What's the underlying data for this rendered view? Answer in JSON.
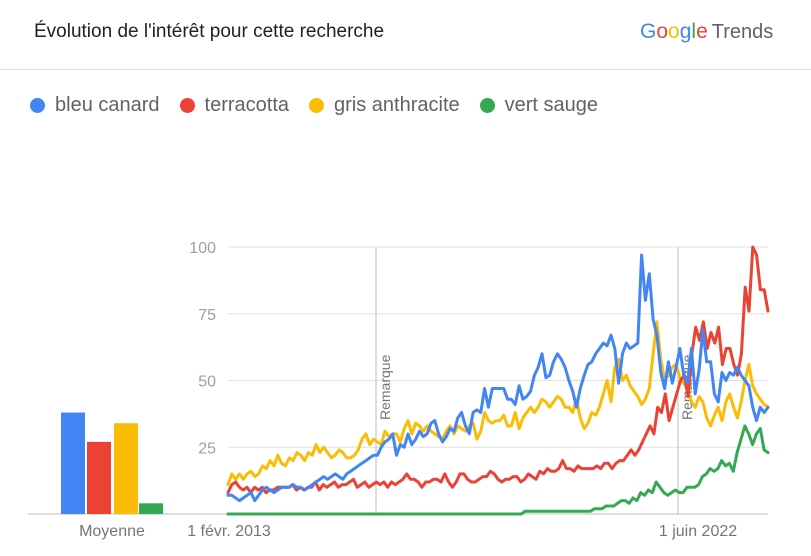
{
  "header": {
    "title": "Évolution de l'intérêt pour cette recherche",
    "brand_google": [
      "G",
      "o",
      "o",
      "g",
      "l",
      "e"
    ],
    "brand_colors": [
      "#4285f4",
      "#ea4335",
      "#fbbc05",
      "#4285f4",
      "#34a853",
      "#ea4335"
    ],
    "brand_trends": "Trends"
  },
  "chart_data": {
    "type": "line",
    "x_tick_labels": [
      "1 févr. 2013",
      "1 juin 2022"
    ],
    "y_ticks": [
      25,
      50,
      75,
      100
    ],
    "ylim": [
      0,
      100
    ],
    "annotations": [
      "Remarque",
      "Remarque"
    ],
    "average_label": "Moyenne",
    "series": [
      {
        "name": "bleu canard",
        "color": "#4285f4",
        "average": 38,
        "values": [
          7,
          7,
          6,
          5,
          6,
          7,
          8,
          5,
          7,
          9,
          10,
          9,
          8,
          9,
          10,
          10,
          10,
          11,
          10,
          10,
          9,
          10,
          11,
          12,
          13,
          14,
          13,
          14,
          15,
          14,
          13,
          15,
          16,
          17,
          18,
          19,
          20,
          21,
          22,
          22,
          25,
          27,
          28,
          30,
          22,
          26,
          25,
          30,
          26,
          28,
          31,
          29,
          30,
          34,
          35,
          30,
          27,
          29,
          32,
          31,
          36,
          38,
          33,
          30,
          38,
          39,
          38,
          47,
          40,
          47,
          47,
          47,
          47,
          43,
          43,
          41,
          48,
          43,
          44,
          46,
          52,
          55,
          60,
          51,
          52,
          57,
          60,
          58,
          55,
          50,
          46,
          40,
          47,
          52,
          56,
          57,
          60,
          62,
          64,
          63,
          67,
          62,
          49,
          60,
          64,
          62,
          63,
          64,
          97,
          80,
          90,
          73,
          67,
          53,
          47,
          57,
          49,
          55,
          62,
          52,
          49,
          62,
          45,
          54,
          69,
          57,
          57,
          45,
          42,
          53,
          50,
          53,
          52,
          55,
          52,
          50,
          48,
          40,
          35,
          40,
          38,
          40
        ]
      },
      {
        "name": "terracotta",
        "color": "#ea4335",
        "average": 27,
        "values": [
          8,
          11,
          12,
          10,
          9,
          10,
          8,
          10,
          9,
          10,
          8,
          9,
          9,
          10,
          10,
          10,
          10,
          11,
          9,
          10,
          9,
          10,
          10,
          12,
          9,
          11,
          10,
          11,
          12,
          10,
          11,
          11,
          12,
          13,
          10,
          11,
          12,
          10,
          11,
          12,
          11,
          12,
          10,
          12,
          11,
          12,
          13,
          15,
          13,
          13,
          12,
          10,
          12,
          12,
          13,
          13,
          12,
          15,
          12,
          10,
          12,
          15,
          15,
          13,
          12,
          12,
          13,
          14,
          14,
          16,
          15,
          13,
          12,
          13,
          13,
          14,
          14,
          12,
          13,
          15,
          14,
          13,
          16,
          15,
          17,
          16,
          16,
          17,
          20,
          17,
          17,
          16,
          18,
          17,
          17,
          17,
          17,
          18,
          17,
          19,
          19,
          17,
          19,
          20,
          20,
          22,
          24,
          22,
          24,
          27,
          30,
          33,
          30,
          40,
          38,
          45,
          35,
          40,
          45,
          50,
          52,
          44,
          60,
          70,
          65,
          72,
          62,
          68,
          64,
          70,
          56,
          62,
          62,
          56,
          52,
          60,
          85,
          76,
          100,
          97,
          84,
          84,
          76
        ]
      },
      {
        "name": "gris anthracite",
        "color": "#fbbc05",
        "average": 34,
        "values": [
          11,
          15,
          13,
          15,
          13,
          15,
          16,
          14,
          15,
          18,
          17,
          20,
          18,
          22,
          19,
          18,
          21,
          20,
          23,
          22,
          20,
          23,
          22,
          26,
          23,
          25,
          23,
          21,
          22,
          24,
          23,
          21,
          21,
          22,
          24,
          28,
          30,
          26,
          28,
          27,
          26,
          31,
          29,
          30,
          30,
          27,
          32,
          35,
          30,
          34,
          33,
          31,
          33,
          31,
          30,
          29,
          28,
          31,
          33,
          30,
          33,
          32,
          31,
          33,
          34,
          28,
          31,
          38,
          35,
          34,
          35,
          35,
          37,
          33,
          33,
          38,
          32,
          36,
          38,
          40,
          38,
          40,
          43,
          42,
          40,
          42,
          44,
          43,
          40,
          40,
          38,
          43,
          36,
          32,
          34,
          38,
          37,
          40,
          45,
          50,
          42,
          55,
          58,
          50,
          52,
          48,
          46,
          44,
          41,
          43,
          47,
          60,
          72,
          58,
          50,
          52,
          55,
          56,
          51,
          49,
          47,
          42,
          40,
          44,
          42,
          36,
          33,
          37,
          40,
          35,
          42,
          45,
          40,
          36,
          42,
          50,
          56,
          48,
          45,
          43,
          41,
          40
        ]
      },
      {
        "name": "vert sauge",
        "color": "#34a853",
        "average": 4,
        "values": [
          0,
          0,
          0,
          0,
          0,
          0,
          0,
          0,
          0,
          0,
          0,
          0,
          0,
          0,
          0,
          0,
          0,
          0,
          0,
          0,
          0,
          0,
          0,
          0,
          0,
          0,
          0,
          0,
          0,
          0,
          0,
          0,
          0,
          0,
          0,
          0,
          0,
          0,
          0,
          0,
          0,
          0,
          0,
          0,
          0,
          0,
          0,
          0,
          0,
          0,
          0,
          0,
          0,
          0,
          0,
          0,
          0,
          0,
          0,
          0,
          0,
          0,
          0,
          0,
          0,
          0,
          0,
          0,
          0,
          0,
          0,
          0,
          0,
          0,
          0,
          0,
          0,
          1,
          1,
          1,
          1,
          1,
          1,
          1,
          1,
          1,
          1,
          1,
          1,
          1,
          1,
          1,
          1,
          1,
          1,
          2,
          2,
          2,
          3,
          3,
          3,
          4,
          5,
          5,
          4,
          6,
          5,
          8,
          7,
          9,
          8,
          12,
          10,
          8,
          7,
          8,
          9,
          8,
          8,
          10,
          10,
          10,
          11,
          14,
          15,
          17,
          16,
          17,
          20,
          18,
          19,
          16,
          23,
          28,
          33,
          30,
          26,
          30,
          32,
          24,
          23
        ]
      }
    ]
  }
}
